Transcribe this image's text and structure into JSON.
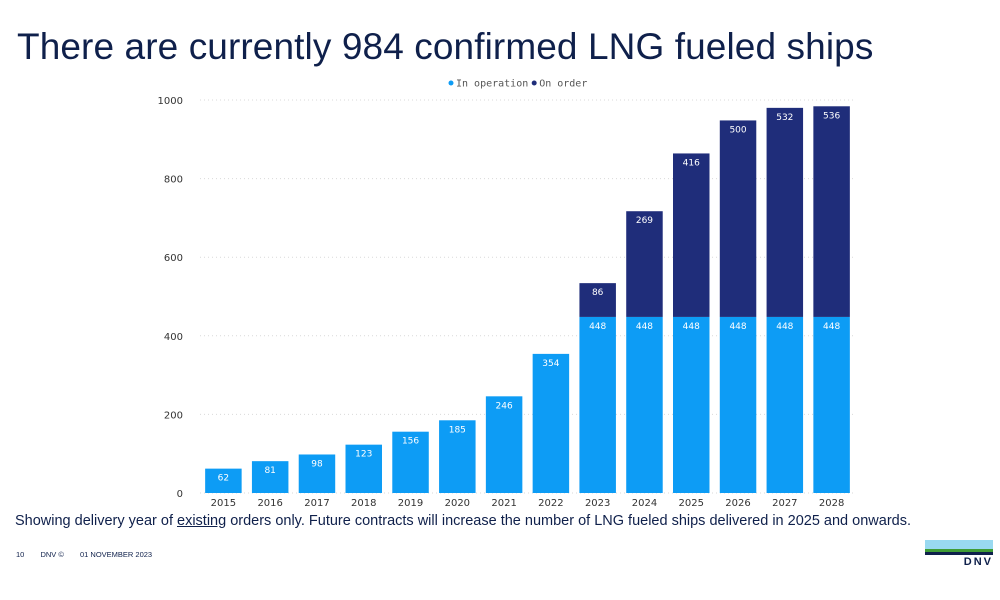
{
  "slide": {
    "title": "There are currently 984 confirmed LNG fueled ships",
    "caption_pre": "Showing delivery year of ",
    "caption_underlined": "existing",
    "caption_post": " orders only. Future contracts will increase the number of LNG fueled ships delivered in 2025 and onwards.",
    "footer_page": "10",
    "footer_owner": "DNV ©",
    "footer_date": "01 NOVEMBER 2023",
    "logo_text": "DNV"
  },
  "colors": {
    "in_operation": "#0d9cf5",
    "on_order": "#1f2d7a",
    "text": "#0f204b",
    "grid": "#d9d9d9"
  },
  "chart_data": {
    "type": "bar",
    "stacked": true,
    "legend_position": "top-center",
    "categories": [
      "2015",
      "2016",
      "2017",
      "2018",
      "2019",
      "2020",
      "2021",
      "2022",
      "2023",
      "2024",
      "2025",
      "2026",
      "2027",
      "2028"
    ],
    "series": [
      {
        "name": "In operation",
        "values": [
          62,
          81,
          98,
          123,
          156,
          185,
          246,
          354,
          448,
          448,
          448,
          448,
          448,
          448
        ]
      },
      {
        "name": "On order",
        "values": [
          0,
          0,
          0,
          0,
          0,
          0,
          0,
          0,
          86,
          269,
          416,
          500,
          532,
          536
        ]
      }
    ],
    "ylim": [
      0,
      1000
    ],
    "yticks": [
      0,
      200,
      400,
      600,
      800,
      1000
    ],
    "grid": true
  }
}
